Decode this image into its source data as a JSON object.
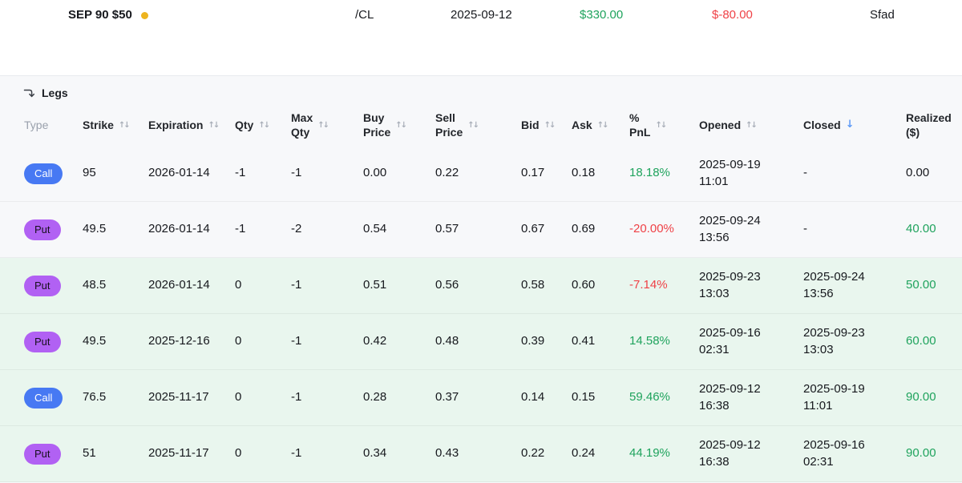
{
  "topbar": {
    "title": "SEP 90 $50",
    "symbol": "/CL",
    "date": "2025-09-12",
    "amount_positive": "$330.00",
    "amount_negative": "$-80.00",
    "label_right": "Sfad"
  },
  "legs": {
    "section_title": "Legs",
    "columns": [
      {
        "label": "Type",
        "sort": "none",
        "wrap": false,
        "muted": true
      },
      {
        "label": "Strike",
        "sort": "both",
        "wrap": false,
        "muted": false
      },
      {
        "label": "Expiration",
        "sort": "both",
        "wrap": false,
        "muted": false
      },
      {
        "label": "Qty",
        "sort": "both",
        "wrap": false,
        "muted": false
      },
      {
        "label": "Max Qty",
        "sort": "both",
        "wrap": true,
        "muted": false
      },
      {
        "label": "Buy Price",
        "sort": "both",
        "wrap": true,
        "muted": false
      },
      {
        "label": "Sell Price",
        "sort": "both",
        "wrap": true,
        "muted": false
      },
      {
        "label": "Bid",
        "sort": "both",
        "wrap": false,
        "muted": false
      },
      {
        "label": "Ask",
        "sort": "both",
        "wrap": false,
        "muted": false
      },
      {
        "label": "% PnL",
        "sort": "both",
        "wrap": true,
        "muted": false
      },
      {
        "label": "Opened",
        "sort": "both",
        "wrap": false,
        "muted": false
      },
      {
        "label": "Closed",
        "sort": "desc",
        "wrap": false,
        "muted": false
      },
      {
        "label": "Realized ($)",
        "sort": "none",
        "wrap": true,
        "muted": false
      }
    ],
    "rows": [
      {
        "type": "Call",
        "strike": "95",
        "expiration": "2026-01-14",
        "qty": "-1",
        "max_qty": "-1",
        "buy_price": "0.00",
        "sell_price": "0.22",
        "bid": "0.17",
        "ask": "0.18",
        "pnl": "18.18%",
        "pnl_tone": "positive",
        "opened": "2025-09-19 11:01",
        "closed": "-",
        "realized": "0.00",
        "realized_tone": "neutral",
        "highlighted": false
      },
      {
        "type": "Put",
        "strike": "49.5",
        "expiration": "2026-01-14",
        "qty": "-1",
        "max_qty": "-2",
        "buy_price": "0.54",
        "sell_price": "0.57",
        "bid": "0.67",
        "ask": "0.69",
        "pnl": "-20.00%",
        "pnl_tone": "negative",
        "opened": "2025-09-24 13:56",
        "closed": "-",
        "realized": "40.00",
        "realized_tone": "positive",
        "highlighted": false
      },
      {
        "type": "Put",
        "strike": "48.5",
        "expiration": "2026-01-14",
        "qty": "0",
        "max_qty": "-1",
        "buy_price": "0.51",
        "sell_price": "0.56",
        "bid": "0.58",
        "ask": "0.60",
        "pnl": "-7.14%",
        "pnl_tone": "negative",
        "opened": "2025-09-23 13:03",
        "closed": "2025-09-24 13:56",
        "realized": "50.00",
        "realized_tone": "positive",
        "highlighted": true
      },
      {
        "type": "Put",
        "strike": "49.5",
        "expiration": "2025-12-16",
        "qty": "0",
        "max_qty": "-1",
        "buy_price": "0.42",
        "sell_price": "0.48",
        "bid": "0.39",
        "ask": "0.41",
        "pnl": "14.58%",
        "pnl_tone": "positive",
        "opened": "2025-09-16 02:31",
        "closed": "2025-09-23 13:03",
        "realized": "60.00",
        "realized_tone": "positive",
        "highlighted": true
      },
      {
        "type": "Call",
        "strike": "76.5",
        "expiration": "2025-11-17",
        "qty": "0",
        "max_qty": "-1",
        "buy_price": "0.28",
        "sell_price": "0.37",
        "bid": "0.14",
        "ask": "0.15",
        "pnl": "59.46%",
        "pnl_tone": "positive",
        "opened": "2025-09-12 16:38",
        "closed": "2025-09-19 11:01",
        "realized": "90.00",
        "realized_tone": "positive",
        "highlighted": true
      },
      {
        "type": "Put",
        "strike": "51",
        "expiration": "2025-11-17",
        "qty": "0",
        "max_qty": "-1",
        "buy_price": "0.34",
        "sell_price": "0.43",
        "bid": "0.22",
        "ask": "0.24",
        "pnl": "44.19%",
        "pnl_tone": "positive",
        "opened": "2025-09-12 16:38",
        "closed": "2025-09-16 02:31",
        "realized": "90.00",
        "realized_tone": "positive",
        "highlighted": true
      }
    ]
  },
  "colors": {
    "positive": "#1fa35d",
    "negative": "#ef4146",
    "call_badge": "#4779f3",
    "put_badge": "#b161f3",
    "closed_row_bg": "#e9f6ee",
    "sort_active": "#5f9bf6",
    "status_dot": "#edb41f"
  }
}
